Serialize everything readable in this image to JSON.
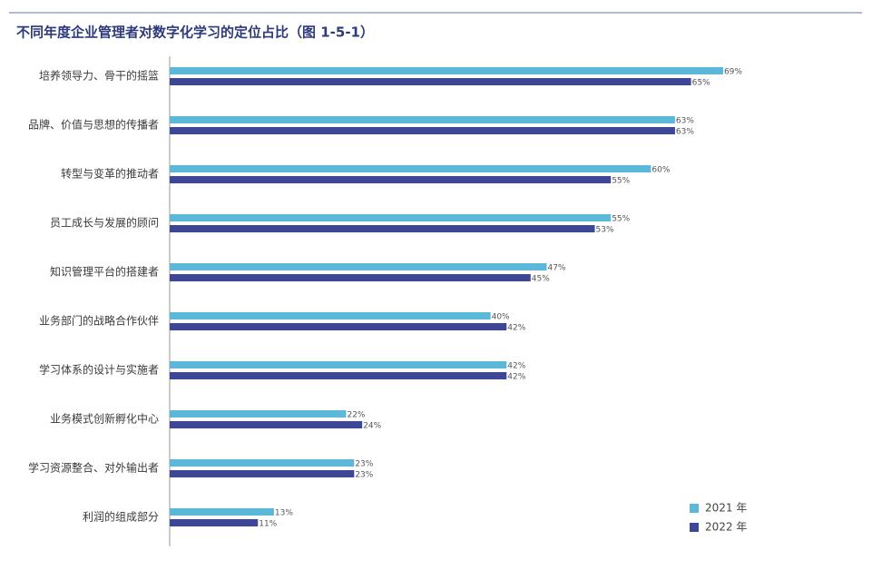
{
  "chart_data": {
    "type": "hbar",
    "title": "不同年度企业管理者对数字化学习的定位占比（图 1-5-1）",
    "categories": [
      "培养领导力、骨干的摇篮",
      "品牌、价值与思想的传播者",
      "转型与变革的推动者",
      "员工成长与发展的顾问",
      "知识管理平台的搭建者",
      "业务部门的战略合作伙伴",
      "学习体系的设计与实施者",
      "业务模式创新孵化中心",
      "学习资源整合、对外输出者",
      "利润的组成部分"
    ],
    "series": [
      {
        "name": "2021 年",
        "color": "#5bb8d8",
        "values": [
          69,
          63,
          60,
          55,
          47,
          40,
          42,
          22,
          23,
          13
        ],
        "value_labels": [
          "69%",
          "63%",
          "60%",
          "55%",
          "47%",
          "40%",
          "42%",
          "22%",
          "23%",
          "13%"
        ]
      },
      {
        "name": "2022 年",
        "color": "#3d4795",
        "values": [
          65,
          63,
          55,
          53,
          45,
          42,
          42,
          24,
          23,
          11
        ],
        "value_labels": [
          "65%",
          "63%",
          "55%",
          "53%",
          "45%",
          "42%",
          "42%",
          "24%",
          "23%",
          "11%"
        ]
      }
    ]
  }
}
